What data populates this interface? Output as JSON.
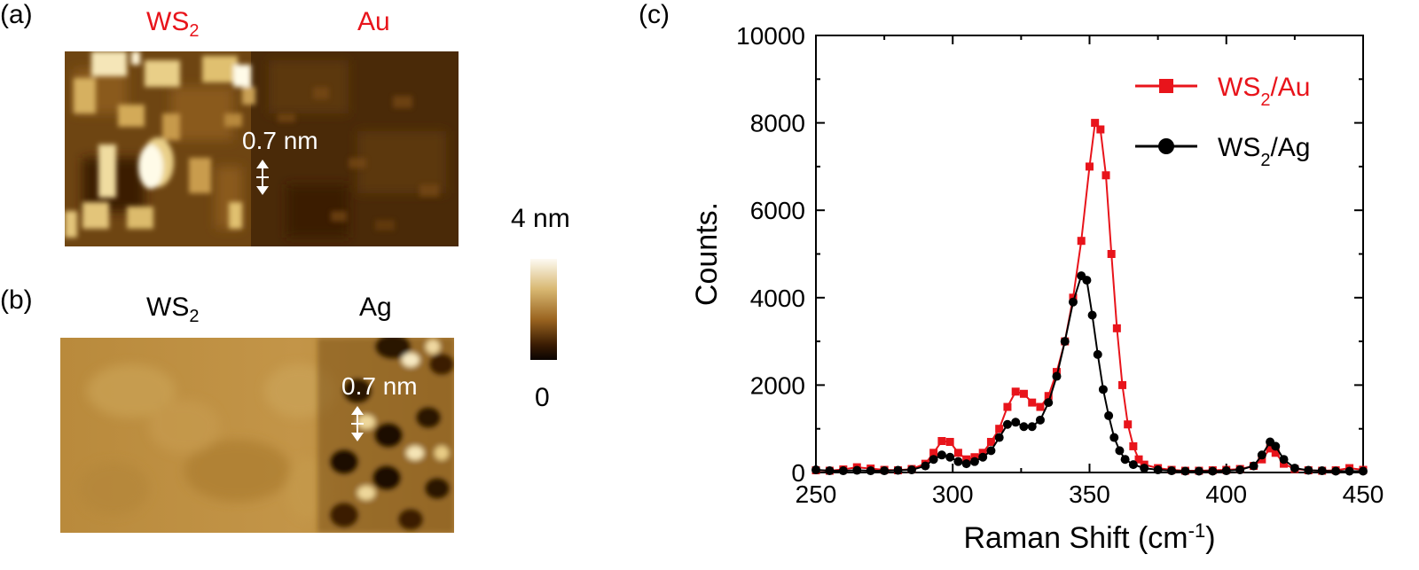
{
  "panels": {
    "a": {
      "label": "(a)",
      "left_material": "WS",
      "left_sub": "2",
      "right_material": "Au",
      "scale_text": "0.7 nm"
    },
    "b": {
      "label": "(b)",
      "left_material": "WS",
      "left_sub": "2",
      "right_material": "Ag",
      "scale_text": "0.7 nm"
    },
    "c": {
      "label": "(c)"
    }
  },
  "colorbar": {
    "max_label": "4 nm",
    "min_label": "0"
  },
  "colors": {
    "accent_red": "#e8141b",
    "black": "#000000"
  },
  "chart_data": {
    "type": "line",
    "xlabel": "Raman Shift (cm",
    "xlabel_sup": "-1",
    "xlabel_end": ")",
    "ylabel": "Counts.",
    "xlim": [
      250,
      450
    ],
    "ylim": [
      0,
      10000
    ],
    "xticks": [
      250,
      300,
      350,
      400,
      450
    ],
    "yticks": [
      0,
      2000,
      4000,
      6000,
      8000,
      10000
    ],
    "legend_position": "top-right",
    "series": [
      {
        "name": "WS",
        "name_sub": "2",
        "name_end": "/Au",
        "color": "#e8141b",
        "marker": "square",
        "points": [
          [
            250,
            50
          ],
          [
            255,
            40
          ],
          [
            260,
            70
          ],
          [
            265,
            120
          ],
          [
            270,
            90
          ],
          [
            275,
            60
          ],
          [
            280,
            50
          ],
          [
            285,
            80
          ],
          [
            290,
            200
          ],
          [
            293,
            450
          ],
          [
            296,
            720
          ],
          [
            299,
            700
          ],
          [
            302,
            450
          ],
          [
            305,
            300
          ],
          [
            308,
            350
          ],
          [
            311,
            450
          ],
          [
            314,
            700
          ],
          [
            317,
            1000
          ],
          [
            320,
            1500
          ],
          [
            323,
            1850
          ],
          [
            326,
            1800
          ],
          [
            329,
            1600
          ],
          [
            332,
            1500
          ],
          [
            335,
            1750
          ],
          [
            338,
            2300
          ],
          [
            341,
            3000
          ],
          [
            344,
            4000
          ],
          [
            347,
            5300
          ],
          [
            350,
            7000
          ],
          [
            352,
            8000
          ],
          [
            354,
            7850
          ],
          [
            356,
            6800
          ],
          [
            358,
            5000
          ],
          [
            360,
            3300
          ],
          [
            362,
            2000
          ],
          [
            364,
            1100
          ],
          [
            366,
            600
          ],
          [
            368,
            300
          ],
          [
            370,
            180
          ],
          [
            375,
            100
          ],
          [
            380,
            60
          ],
          [
            385,
            40
          ],
          [
            390,
            40
          ],
          [
            395,
            50
          ],
          [
            400,
            60
          ],
          [
            405,
            80
          ],
          [
            410,
            150
          ],
          [
            413,
            300
          ],
          [
            416,
            550
          ],
          [
            418,
            450
          ],
          [
            421,
            200
          ],
          [
            425,
            80
          ],
          [
            430,
            50
          ],
          [
            435,
            40
          ],
          [
            440,
            50
          ],
          [
            445,
            100
          ],
          [
            450,
            60
          ]
        ]
      },
      {
        "name": "WS",
        "name_sub": "2",
        "name_end": "/Ag",
        "color": "#000000",
        "marker": "circle",
        "points": [
          [
            250,
            60
          ],
          [
            255,
            40
          ],
          [
            260,
            40
          ],
          [
            265,
            50
          ],
          [
            270,
            40
          ],
          [
            275,
            40
          ],
          [
            280,
            50
          ],
          [
            285,
            60
          ],
          [
            290,
            150
          ],
          [
            293,
            300
          ],
          [
            296,
            400
          ],
          [
            299,
            350
          ],
          [
            302,
            250
          ],
          [
            305,
            200
          ],
          [
            308,
            250
          ],
          [
            311,
            350
          ],
          [
            314,
            500
          ],
          [
            317,
            800
          ],
          [
            320,
            1100
          ],
          [
            323,
            1150
          ],
          [
            326,
            1050
          ],
          [
            329,
            1050
          ],
          [
            332,
            1200
          ],
          [
            335,
            1600
          ],
          [
            338,
            2200
          ],
          [
            341,
            3000
          ],
          [
            344,
            3900
          ],
          [
            347,
            4500
          ],
          [
            349,
            4400
          ],
          [
            351,
            3600
          ],
          [
            353,
            2700
          ],
          [
            355,
            1900
          ],
          [
            357,
            1300
          ],
          [
            359,
            800
          ],
          [
            361,
            500
          ],
          [
            363,
            300
          ],
          [
            366,
            180
          ],
          [
            370,
            100
          ],
          [
            375,
            60
          ],
          [
            380,
            40
          ],
          [
            385,
            30
          ],
          [
            390,
            30
          ],
          [
            395,
            30
          ],
          [
            400,
            40
          ],
          [
            405,
            60
          ],
          [
            410,
            150
          ],
          [
            413,
            400
          ],
          [
            416,
            700
          ],
          [
            418,
            600
          ],
          [
            421,
            300
          ],
          [
            425,
            100
          ],
          [
            430,
            50
          ],
          [
            435,
            40
          ],
          [
            440,
            30
          ],
          [
            445,
            30
          ],
          [
            450,
            30
          ]
        ]
      }
    ]
  }
}
